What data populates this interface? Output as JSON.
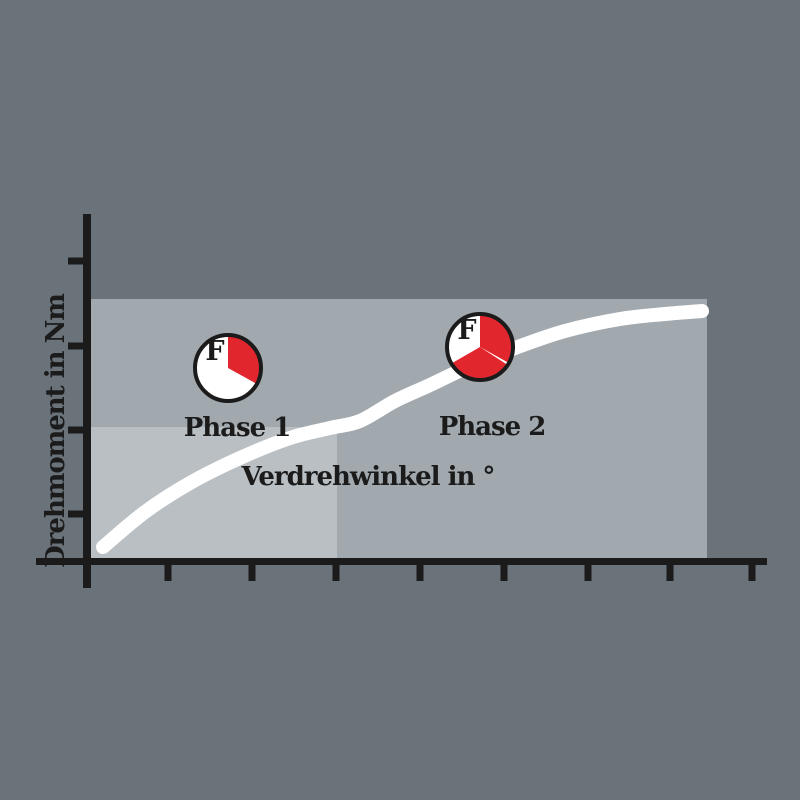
{
  "chart_data": {
    "type": "line",
    "title": "",
    "xlabel": "Verdrehwinkel in °",
    "ylabel": "Drehmoment in Nm",
    "x_tick_count": 8,
    "y_tick_count": 4,
    "x_tick_positions": [
      168,
      252,
      336,
      420,
      504,
      588,
      670,
      752
    ],
    "y_tick_positions": [
      261,
      346,
      430,
      514
    ],
    "axis_numeric_labels": "none shown",
    "grid": false,
    "legend": false,
    "curve_points": [
      [
        103,
        547
      ],
      [
        145,
        512
      ],
      [
        190,
        483
      ],
      [
        240,
        458
      ],
      [
        290,
        438
      ],
      [
        330,
        428
      ],
      [
        360,
        421
      ],
      [
        395,
        401
      ],
      [
        430,
        385
      ],
      [
        470,
        366
      ],
      [
        515,
        348
      ],
      [
        565,
        331
      ],
      [
        620,
        319
      ],
      [
        665,
        314
      ],
      [
        702,
        311
      ]
    ],
    "annotations": [
      "Phase 1",
      "Phase 2"
    ]
  },
  "labels": {
    "phase1": "Phase 1",
    "phase2": "Phase 2",
    "xlabel": "Verdrehwinkel in °",
    "ylabel": "Drehmoment in Nm"
  },
  "pies": [
    {
      "letter": "F",
      "red_fraction": "1/3",
      "slices": [
        {
          "start": 0,
          "end": 119
        }
      ]
    },
    {
      "letter": "F",
      "red_fraction": "2/3",
      "slices": [
        {
          "start": 0,
          "end": 119
        },
        {
          "start": 123,
          "end": 240
        }
      ]
    }
  ],
  "colors": {
    "bg": "#6a727a",
    "band": "#a1a8ae",
    "band_light": "#b9bfc3",
    "ink": "#1b1b1b",
    "curve": "#ffffff",
    "red": "#e2262e"
  }
}
